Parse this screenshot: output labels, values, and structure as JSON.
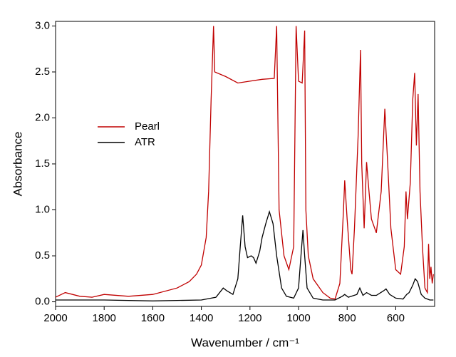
{
  "chart_data": {
    "type": "line",
    "xlabel": "Wavenumber / cm⁻¹",
    "ylabel": "Absorbance",
    "xlim": [
      2000,
      440
    ],
    "xticks": [
      2000,
      1800,
      1600,
      1400,
      1200,
      1000,
      800,
      600
    ],
    "ylim": [
      -0.05,
      3.05
    ],
    "yticks": [
      {
        "value": 0,
        "label": "0.0"
      },
      0.5,
      {
        "value": 1,
        "label": "1.0"
      },
      1.5,
      {
        "value": 2,
        "label": "2.0"
      },
      2.5,
      {
        "value": 3,
        "label": "3.0"
      }
    ],
    "legend": "upper left",
    "series": [
      {
        "name": "Pearl",
        "color": "#c00000",
        "x": [
          2000,
          1960,
          1900,
          1850,
          1800,
          1700,
          1600,
          1500,
          1450,
          1420,
          1400,
          1380,
          1370,
          1360,
          1350,
          1345,
          1300,
          1250,
          1200,
          1150,
          1100,
          1090,
          1080,
          1060,
          1040,
          1020,
          1010,
          1000,
          985,
          975,
          970,
          960,
          940,
          900,
          870,
          850,
          830,
          815,
          810,
          800,
          785,
          780,
          770,
          755,
          745,
          740,
          730,
          720,
          710,
          700,
          680,
          660,
          645,
          635,
          620,
          600,
          580,
          565,
          558,
          552,
          540,
          530,
          522,
          515,
          508,
          500,
          490,
          480,
          470,
          465,
          460,
          455,
          450,
          445
        ],
        "values": [
          0.05,
          0.1,
          0.06,
          0.05,
          0.08,
          0.06,
          0.08,
          0.15,
          0.22,
          0.3,
          0.4,
          0.7,
          1.2,
          2.2,
          3.0,
          2.5,
          2.45,
          2.38,
          2.4,
          2.42,
          2.43,
          3.0,
          1.0,
          0.5,
          0.35,
          0.6,
          3.0,
          2.4,
          2.38,
          2.95,
          1.0,
          0.5,
          0.25,
          0.1,
          0.04,
          0.03,
          0.2,
          1.0,
          1.32,
          0.9,
          0.35,
          0.3,
          0.8,
          1.8,
          2.74,
          1.5,
          0.8,
          1.52,
          1.2,
          0.9,
          0.75,
          1.2,
          2.1,
          1.6,
          0.8,
          0.35,
          0.3,
          0.6,
          1.2,
          0.9,
          1.3,
          2.2,
          2.49,
          1.7,
          2.26,
          1.2,
          0.6,
          0.15,
          0.1,
          0.63,
          0.25,
          0.38,
          0.2,
          0.3
        ]
      },
      {
        "name": "ATR",
        "color": "#000000",
        "x": [
          2000,
          1800,
          1600,
          1400,
          1340,
          1310,
          1295,
          1270,
          1250,
          1240,
          1230,
          1220,
          1210,
          1195,
          1185,
          1175,
          1160,
          1150,
          1135,
          1120,
          1105,
          1090,
          1070,
          1050,
          1020,
          1000,
          990,
          982,
          975,
          965,
          940,
          900,
          850,
          820,
          810,
          795,
          760,
          748,
          735,
          720,
          700,
          680,
          650,
          640,
          625,
          600,
          570,
          555,
          545,
          530,
          520,
          510,
          495,
          480,
          460,
          445
        ],
        "values": [
          0.02,
          0.02,
          0.01,
          0.02,
          0.05,
          0.15,
          0.12,
          0.08,
          0.25,
          0.6,
          0.94,
          0.6,
          0.48,
          0.5,
          0.48,
          0.42,
          0.55,
          0.7,
          0.85,
          0.98,
          0.85,
          0.5,
          0.15,
          0.06,
          0.04,
          0.15,
          0.5,
          0.78,
          0.5,
          0.15,
          0.04,
          0.02,
          0.02,
          0.06,
          0.08,
          0.05,
          0.08,
          0.15,
          0.07,
          0.1,
          0.07,
          0.07,
          0.12,
          0.14,
          0.08,
          0.04,
          0.03,
          0.08,
          0.1,
          0.18,
          0.25,
          0.22,
          0.08,
          0.04,
          0.02,
          0.02
        ]
      }
    ]
  }
}
